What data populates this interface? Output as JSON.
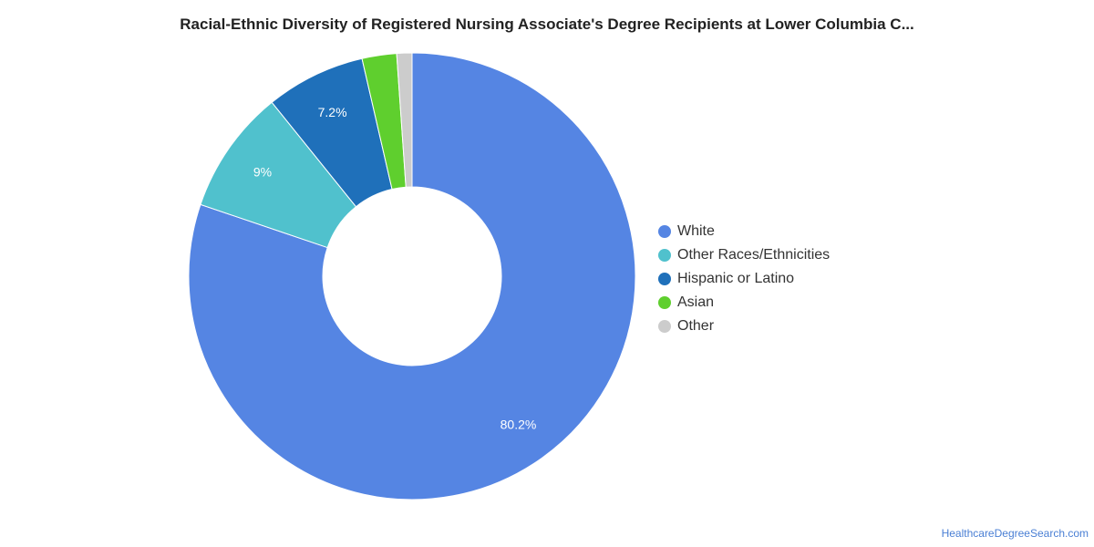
{
  "title": "Racial-Ethnic Diversity of Registered Nursing Associate's Degree Recipients at Lower Columbia C...",
  "watermark": "HealthcareDegreeSearch.com",
  "chart_data": {
    "type": "pie",
    "donut": true,
    "legend_position": "right",
    "slices": [
      {
        "name": "White",
        "value": 80.2,
        "label": "80.2%",
        "color": "#5585e3"
      },
      {
        "name": "Other Races/Ethnicities",
        "value": 9.0,
        "label": "9%",
        "color": "#50c1cd"
      },
      {
        "name": "Hispanic or Latino",
        "value": 7.2,
        "label": "7.2%",
        "color": "#1f70ba"
      },
      {
        "name": "Asian",
        "value": 2.5,
        "label": "",
        "color": "#5fcf2e"
      },
      {
        "name": "Other",
        "value": 1.1,
        "label": "",
        "color": "#cccccc"
      }
    ]
  }
}
